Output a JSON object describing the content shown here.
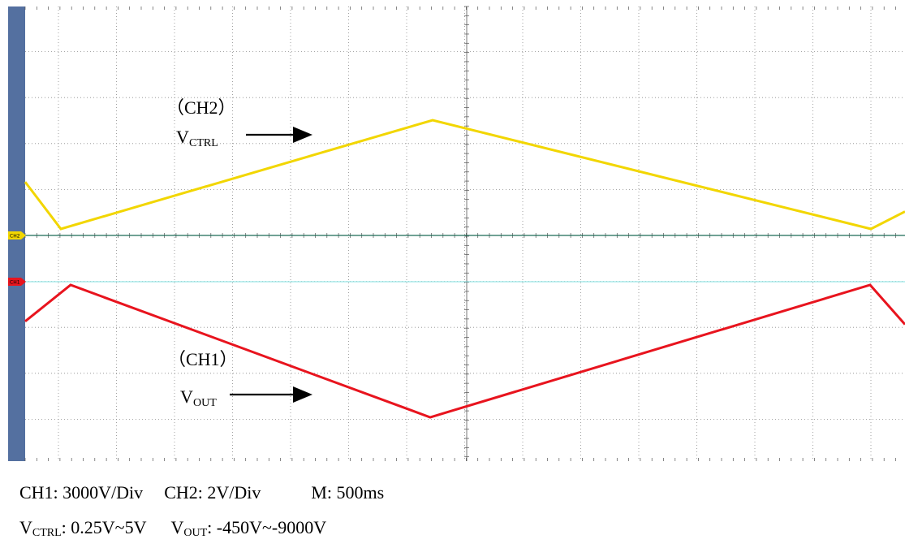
{
  "chart_data": {
    "type": "line",
    "grid": true,
    "x_unit_label": "M: 500ms",
    "series": [
      {
        "channel": "CH2",
        "label_top": "（CH2）",
        "label_name": "V",
        "label_sub": "CTRL",
        "color": "#f2d600",
        "points": [
          [
            0,
            2.28
          ],
          [
            1,
            0.25
          ],
          [
            9,
            4.95
          ],
          [
            19,
            0.25
          ],
          [
            20,
            1.0
          ]
        ]
      },
      {
        "channel": "CH1",
        "label_top": "（CH1）",
        "label_name": "V",
        "label_sub": "OUT",
        "color": "#e8141e",
        "points": [
          [
            0,
            -2.8
          ],
          [
            1,
            -0.45
          ],
          [
            9,
            -9.0
          ],
          [
            19,
            -0.45
          ],
          [
            20,
            -3.0
          ]
        ]
      }
    ],
    "markers": [
      {
        "label": "CH2",
        "color": "#f2d600"
      },
      {
        "label": "CH1",
        "color": "#e8141e"
      }
    ],
    "reference_line_color": "#7fe0e0"
  },
  "caption": {
    "line1": {
      "ch1": "CH1: 3000V/Div",
      "ch2": "CH2: 2V/Div",
      "m": "M: 500ms"
    },
    "line2": {
      "vctrl_name": "V",
      "vctrl_sub": "CTRL",
      "vctrl_range": ": 0.25V~5V",
      "vout_name": "V",
      "vout_sub": "OUT",
      "vout_range": ": -450V~-9000V"
    }
  },
  "colors": {
    "left_bar": "#5470a0",
    "grid": "#8a8a8a",
    "axis": "#555555",
    "ground_line": "#1a6a56"
  }
}
